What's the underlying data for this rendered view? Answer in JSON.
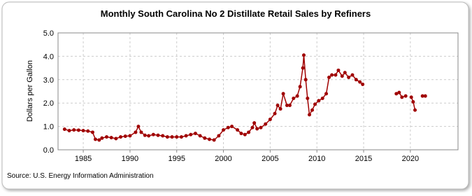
{
  "chart_data": {
    "type": "line",
    "title": "Monthly South Carolina No 2 Distillate Retail Sales by Refiners",
    "y_label": "Dollars per Gallon",
    "source": "Source: U.S. Energy Information Administration",
    "xlim": [
      1982.3,
      2025.1
    ],
    "ylim": [
      0,
      5
    ],
    "xticks": [
      1985,
      1990,
      1995,
      2000,
      2005,
      2010,
      2015,
      2020
    ],
    "yticks": [
      {
        "value": 0,
        "label": "0.0"
      },
      {
        "value": 1,
        "label": "1.0"
      },
      {
        "value": 2,
        "label": "2.0"
      },
      {
        "value": 3,
        "label": "3.0"
      },
      {
        "value": 4,
        "label": "4.0"
      },
      {
        "value": 5,
        "label": "5.0"
      }
    ],
    "grid": true,
    "x": [
      1983.0,
      1983.5,
      1984.0,
      1984.5,
      1985.0,
      1985.5,
      1986.0,
      1986.3,
      1986.7,
      1987.0,
      1987.5,
      1988.0,
      1988.5,
      1989.0,
      1989.5,
      1990.0,
      1990.6,
      1990.9,
      1991.2,
      1991.6,
      1992.0,
      1992.5,
      1993.0,
      1993.5,
      1994.0,
      1994.5,
      1995.0,
      1995.5,
      1996.0,
      1996.5,
      1997.0,
      1997.5,
      1998.0,
      1998.5,
      1999.0,
      1999.5,
      2000.0,
      2000.5,
      2000.9,
      2001.5,
      2001.9,
      2002.3,
      2002.7,
      2003.1,
      2003.3,
      2003.6,
      2004.0,
      2004.5,
      2005.0,
      2005.5,
      2005.8,
      2006.1,
      2006.4,
      2006.8,
      2007.1,
      2007.5,
      2007.9,
      2008.2,
      2008.5,
      2008.6,
      2008.8,
      2009.0,
      2009.2,
      2009.5,
      2009.8,
      2010.2,
      2010.6,
      2011.0,
      2011.3,
      2011.6,
      2012.0,
      2012.3,
      2012.7,
      2013.0,
      2013.4,
      2013.8,
      2014.2,
      2014.6,
      2014.9,
      2016.0,
      2018.5,
      2018.8,
      2019.1,
      2019.5,
      2019.8,
      2020.1,
      2020.3,
      2020.5,
      2020.8,
      2021.3,
      2021.6
    ],
    "series": [
      {
        "name": "South Carolina",
        "color": "#a00000",
        "values": [
          0.88,
          0.82,
          0.85,
          0.84,
          0.82,
          0.8,
          0.75,
          0.45,
          0.42,
          0.5,
          0.55,
          0.52,
          0.48,
          0.55,
          0.58,
          0.6,
          0.75,
          1.0,
          0.75,
          0.62,
          0.6,
          0.65,
          0.62,
          0.6,
          0.55,
          0.55,
          0.55,
          0.55,
          0.6,
          0.65,
          0.7,
          0.6,
          0.5,
          0.45,
          0.42,
          0.6,
          0.85,
          0.95,
          1.0,
          0.85,
          0.7,
          0.65,
          0.75,
          0.95,
          1.15,
          0.9,
          0.95,
          1.1,
          1.3,
          1.55,
          1.9,
          1.75,
          2.4,
          1.9,
          1.9,
          2.2,
          2.3,
          2.7,
          3.5,
          4.05,
          3.0,
          2.2,
          1.5,
          1.7,
          1.95,
          2.1,
          2.2,
          2.4,
          3.1,
          3.2,
          3.2,
          3.4,
          3.15,
          3.3,
          3.1,
          3.2,
          3.0,
          2.9,
          2.8,
          null,
          2.4,
          2.45,
          2.25,
          2.3,
          null,
          2.25,
          2.05,
          1.7,
          null,
          2.3,
          2.3
        ]
      }
    ]
  }
}
